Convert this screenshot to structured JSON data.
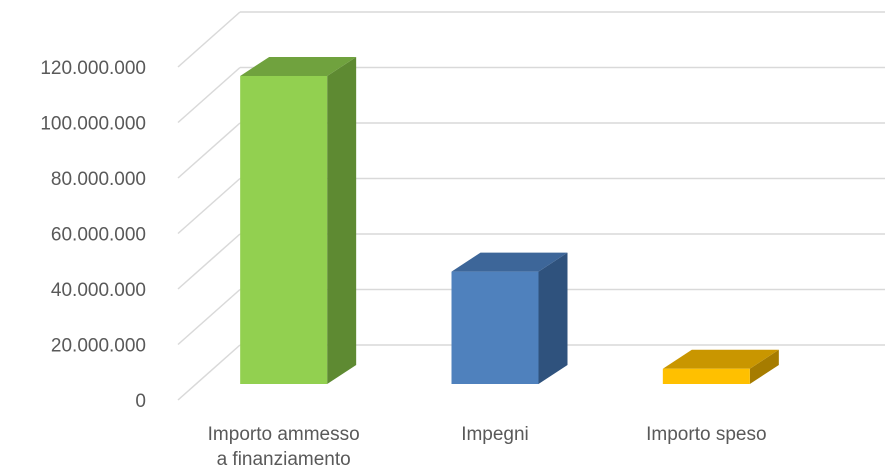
{
  "chart_data": {
    "type": "bar",
    "title": "",
    "xlabel": "",
    "ylabel": "",
    "categories": [
      [
        "Importo ammesso",
        "a finanziamento"
      ],
      [
        "Impegni"
      ],
      [
        "Importo speso"
      ]
    ],
    "values": [
      111000000,
      40500000,
      5500000
    ],
    "colors": [
      {
        "front": "#92D050",
        "top": "#70A23E",
        "side": "#5E8A32"
      },
      {
        "front": "#4F81BD",
        "top": "#3D6699",
        "side": "#2F527D"
      },
      {
        "front": "#FFC000",
        "top": "#C99600",
        "side": "#A67C00"
      }
    ],
    "ylim": [
      0,
      120000000
    ],
    "yticks": [
      "0",
      "20.000.000",
      "40.000.000",
      "60.000.000",
      "80.000.000",
      "100.000.000",
      "120.000.000"
    ],
    "grid": true,
    "legend": "none",
    "style": "3d-column"
  }
}
